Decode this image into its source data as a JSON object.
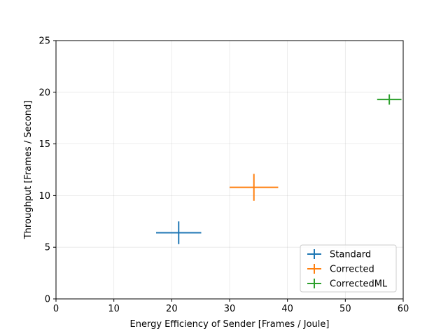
{
  "chart_data": {
    "type": "scatter",
    "title": "",
    "xlabel": "Energy Efficiency of Sender [Frames / Joule]",
    "ylabel": "Throughput [Frames / Second]",
    "xlim": [
      0,
      60
    ],
    "ylim": [
      0,
      25
    ],
    "xticks": [
      0,
      10,
      20,
      30,
      40,
      50,
      60
    ],
    "yticks": [
      0,
      5,
      10,
      15,
      20,
      25
    ],
    "grid": true,
    "legend_position": "lower-right",
    "series": [
      {
        "name": "Standard",
        "color": "#1f77b4",
        "x": 21.2,
        "y": 6.4,
        "xerr": 3.9,
        "yerr": 1.1
      },
      {
        "name": "Corrected",
        "color": "#ff7f0e",
        "x": 34.2,
        "y": 10.8,
        "xerr": 4.2,
        "yerr": 1.3
      },
      {
        "name": "CorrectedML",
        "color": "#2ca02c",
        "x": 57.6,
        "y": 19.3,
        "xerr": 2.1,
        "yerr": 0.5
      }
    ]
  }
}
